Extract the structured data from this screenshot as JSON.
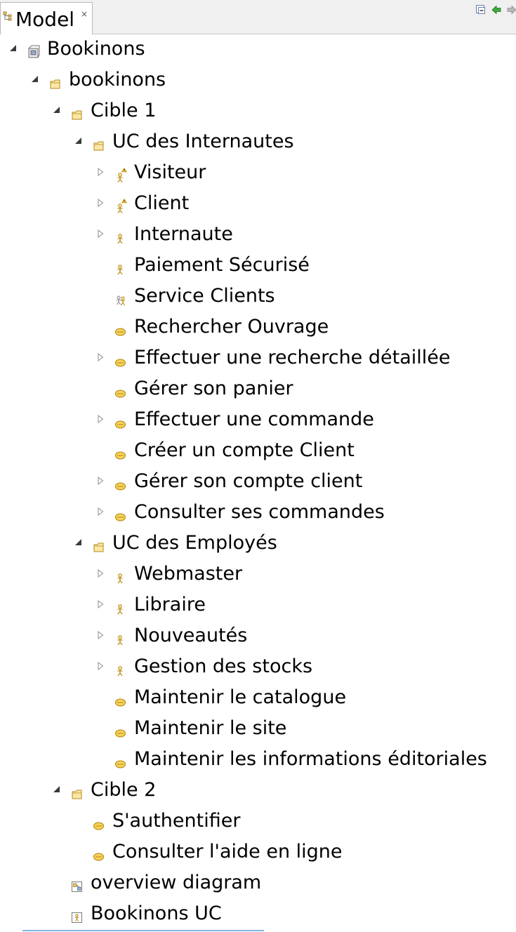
{
  "view": {
    "tab_title": "Model",
    "tab_close_glyph": "×",
    "toolbar": [
      "collapse-all-icon",
      "back-icon",
      "forward-icon"
    ]
  },
  "tree": [
    {
      "label": "Bookinons",
      "level": 0,
      "icon": "model-icon",
      "twisty": "expanded"
    },
    {
      "label": "bookinons",
      "level": 1,
      "icon": "package-icon",
      "twisty": "expanded"
    },
    {
      "label": "Cible 1",
      "level": 2,
      "icon": "package-icon",
      "twisty": "expanded"
    },
    {
      "label": "UC des Internautes",
      "level": 3,
      "icon": "package-icon",
      "twisty": "expanded"
    },
    {
      "label": "Visiteur",
      "level": 4,
      "icon": "actor-warning-icon",
      "twisty": "collapsed"
    },
    {
      "label": "Client",
      "level": 4,
      "icon": "actor-warning-icon",
      "twisty": "collapsed"
    },
    {
      "label": "Internaute",
      "level": 4,
      "icon": "actor-icon",
      "twisty": "collapsed"
    },
    {
      "label": "Paiement Sécurisé",
      "level": 4,
      "icon": "actor-icon",
      "twisty": "none"
    },
    {
      "label": "Service Clients",
      "level": 4,
      "icon": "actor-group-icon",
      "twisty": "none"
    },
    {
      "label": "Rechercher Ouvrage",
      "level": 4,
      "icon": "usecase-icon",
      "twisty": "none"
    },
    {
      "label": "Effectuer une recherche détaillée",
      "level": 4,
      "icon": "usecase-icon",
      "twisty": "collapsed"
    },
    {
      "label": "Gérer son panier",
      "level": 4,
      "icon": "usecase-icon",
      "twisty": "none"
    },
    {
      "label": "Effectuer une commande",
      "level": 4,
      "icon": "usecase-icon",
      "twisty": "collapsed"
    },
    {
      "label": "Créer un compte Client",
      "level": 4,
      "icon": "usecase-icon",
      "twisty": "none"
    },
    {
      "label": "Gérer son compte client",
      "level": 4,
      "icon": "usecase-icon",
      "twisty": "collapsed"
    },
    {
      "label": "Consulter ses commandes",
      "level": 4,
      "icon": "usecase-icon",
      "twisty": "collapsed"
    },
    {
      "label": "UC des Employés",
      "level": 3,
      "icon": "package-icon",
      "twisty": "expanded"
    },
    {
      "label": "Webmaster",
      "level": 4,
      "icon": "actor-icon",
      "twisty": "collapsed"
    },
    {
      "label": "Libraire",
      "level": 4,
      "icon": "actor-icon",
      "twisty": "collapsed"
    },
    {
      "label": "Nouveautés",
      "level": 4,
      "icon": "actor-icon",
      "twisty": "collapsed"
    },
    {
      "label": "Gestion des stocks",
      "level": 4,
      "icon": "actor-icon",
      "twisty": "collapsed"
    },
    {
      "label": "Maintenir le catalogue",
      "level": 4,
      "icon": "usecase-icon",
      "twisty": "none"
    },
    {
      "label": "Maintenir le site",
      "level": 4,
      "icon": "usecase-icon",
      "twisty": "none"
    },
    {
      "label": "Maintenir les informations éditoriales",
      "level": 4,
      "icon": "usecase-icon",
      "twisty": "none"
    },
    {
      "label": "Cible 2",
      "level": 2,
      "icon": "package-icon",
      "twisty": "expanded"
    },
    {
      "label": "S'authentifier",
      "level": 3,
      "icon": "usecase-icon",
      "twisty": "none"
    },
    {
      "label": "Consulter l'aide en ligne",
      "level": 3,
      "icon": "usecase-icon",
      "twisty": "none"
    },
    {
      "label": "overview diagram",
      "level": 2,
      "icon": "class-diagram-icon",
      "twisty": "none"
    },
    {
      "label": "Bookinons UC",
      "level": 2,
      "icon": "usecase-diagram-icon",
      "twisty": "none"
    }
  ]
}
